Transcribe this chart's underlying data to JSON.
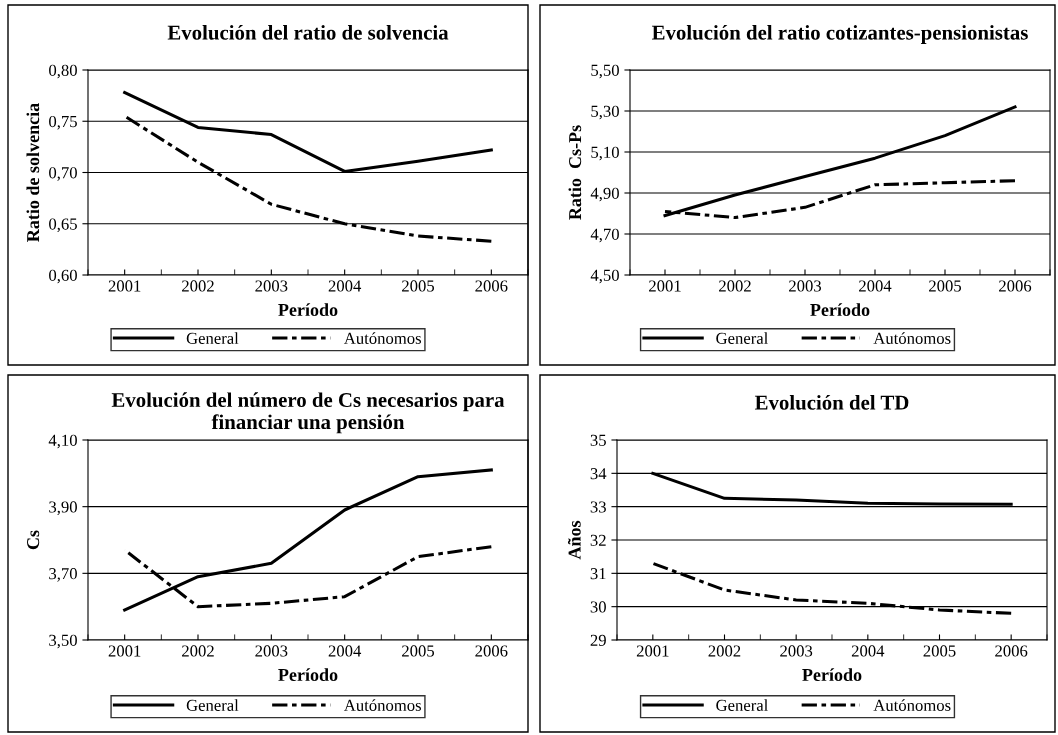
{
  "chart_data": [
    {
      "type": "line",
      "title": "Evolución del ratio de solvencia",
      "xlabel": "Período",
      "ylabel": "Ratio de solvencia",
      "categories": [
        "2001",
        "2002",
        "2003",
        "2004",
        "2005",
        "2006"
      ],
      "series": [
        {
          "name": "General",
          "color": "#000000",
          "line_style": "solid",
          "values": [
            0.778,
            0.744,
            0.737,
            0.701,
            0.711,
            0.722
          ]
        },
        {
          "name": "Autónomos",
          "color": "#000000",
          "line_style": "dashed",
          "values": [
            0.755,
            0.71,
            0.669,
            0.65,
            0.638,
            0.633
          ]
        }
      ],
      "ylim": [
        0.6,
        0.8
      ],
      "yticks": [
        {
          "value": 0.6,
          "label": "0,60"
        },
        {
          "value": 0.65,
          "label": "0,65"
        },
        {
          "value": 0.7,
          "label": "0,70"
        },
        {
          "value": 0.75,
          "label": "0,75"
        },
        {
          "value": 0.8,
          "label": "0,80"
        }
      ],
      "grid": "y",
      "legend": "bottom",
      "marker": "none"
    },
    {
      "type": "line",
      "title": "Evolución del ratio cotizantes-pensionistas",
      "xlabel": "Período",
      "ylabel": "Ratio  Cs-Ps",
      "categories": [
        "2001",
        "2002",
        "2003",
        "2004",
        "2005",
        "2006"
      ],
      "series": [
        {
          "name": "General",
          "color": "#000000",
          "line_style": "solid",
          "values": [
            4.79,
            4.89,
            4.98,
            5.07,
            5.18,
            5.32
          ]
        },
        {
          "name": "Autónomos",
          "color": "#000000",
          "line_style": "dashed",
          "values": [
            4.81,
            4.78,
            4.83,
            4.94,
            4.95,
            4.96
          ]
        }
      ],
      "ylim": [
        4.5,
        5.5
      ],
      "yticks": [
        {
          "value": 4.5,
          "label": "4,50"
        },
        {
          "value": 4.7,
          "label": "4,70"
        },
        {
          "value": 4.9,
          "label": "4,90"
        },
        {
          "value": 5.1,
          "label": "5,10"
        },
        {
          "value": 5.3,
          "label": "5,30"
        },
        {
          "value": 5.5,
          "label": "5,50"
        }
      ],
      "grid": "y",
      "legend": "bottom",
      "marker": "none"
    },
    {
      "type": "line",
      "title": "Evolución del número de Cs necesarios para financiar una pensión",
      "xlabel": "Período",
      "ylabel": "Cs",
      "categories": [
        "2001",
        "2002",
        "2003",
        "2004",
        "2005",
        "2006"
      ],
      "series": [
        {
          "name": "General",
          "color": "#000000",
          "line_style": "solid",
          "values": [
            3.59,
            3.69,
            3.73,
            3.89,
            3.99,
            4.01
          ]
        },
        {
          "name": "Autónomos",
          "color": "#000000",
          "line_style": "dashed",
          "values": [
            3.77,
            3.6,
            3.61,
            3.63,
            3.75,
            3.78
          ]
        }
      ],
      "ylim": [
        3.5,
        4.1
      ],
      "yticks": [
        {
          "value": 3.5,
          "label": "3,50"
        },
        {
          "value": 3.7,
          "label": "3,70"
        },
        {
          "value": 3.9,
          "label": "3,90"
        },
        {
          "value": 4.1,
          "label": "4,10"
        }
      ],
      "grid": "y",
      "legend": "bottom",
      "marker": "none"
    },
    {
      "type": "line",
      "title": "Evolución del TD",
      "xlabel": "Período",
      "ylabel": "Años",
      "categories": [
        "2001",
        "2002",
        "2003",
        "2004",
        "2005",
        "2006"
      ],
      "series": [
        {
          "name": "General",
          "color": "#000000",
          "line_style": "solid",
          "values": [
            34.0,
            33.25,
            33.2,
            33.1,
            33.08,
            33.07
          ]
        },
        {
          "name": "Autónomos",
          "color": "#000000",
          "line_style": "dashed",
          "values": [
            31.3,
            30.5,
            30.2,
            30.1,
            29.9,
            29.8
          ]
        }
      ],
      "ylim": [
        29,
        35
      ],
      "yticks": [
        29,
        30,
        31,
        32,
        33,
        34,
        35
      ],
      "grid": "y",
      "legend": "bottom",
      "marker": "none"
    }
  ]
}
